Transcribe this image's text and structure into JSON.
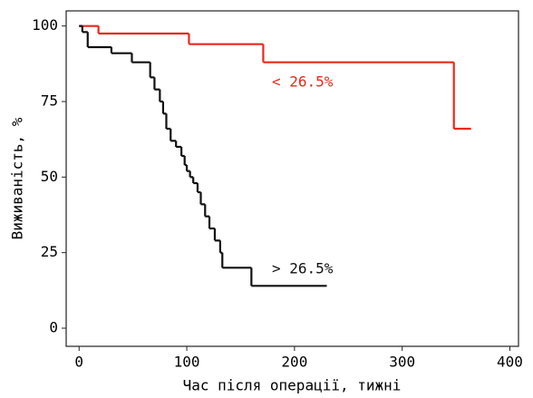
{
  "chart_data": {
    "type": "line",
    "step": true,
    "xlabel": "Час після операції, тижні",
    "ylabel": "Виживаність, %",
    "xlim": [
      -12,
      408
    ],
    "ylim": [
      -6,
      105
    ],
    "xticks": [
      0,
      100,
      200,
      300,
      400
    ],
    "yticks": [
      0,
      25,
      50,
      75,
      100
    ],
    "series": [
      {
        "name": "< 26.5%",
        "color": "#e8291c",
        "x": [
          0,
          18,
          102,
          171,
          348,
          364
        ],
        "values": [
          100,
          97.5,
          94,
          88,
          66,
          66
        ]
      },
      {
        "name": "> 26.5%",
        "color": "#111111",
        "x": [
          0,
          3,
          8,
          30,
          49,
          66,
          70,
          75,
          78,
          81,
          85,
          90,
          95,
          98,
          100,
          103,
          106,
          110,
          113,
          117,
          121,
          126,
          131,
          133,
          160,
          230
        ],
        "values": [
          100,
          98,
          93,
          91,
          88,
          83,
          79,
          75,
          71,
          66,
          62,
          60,
          57,
          54,
          52,
          50,
          48,
          45,
          41,
          37,
          33,
          29,
          25,
          20,
          14,
          14
        ]
      }
    ]
  }
}
